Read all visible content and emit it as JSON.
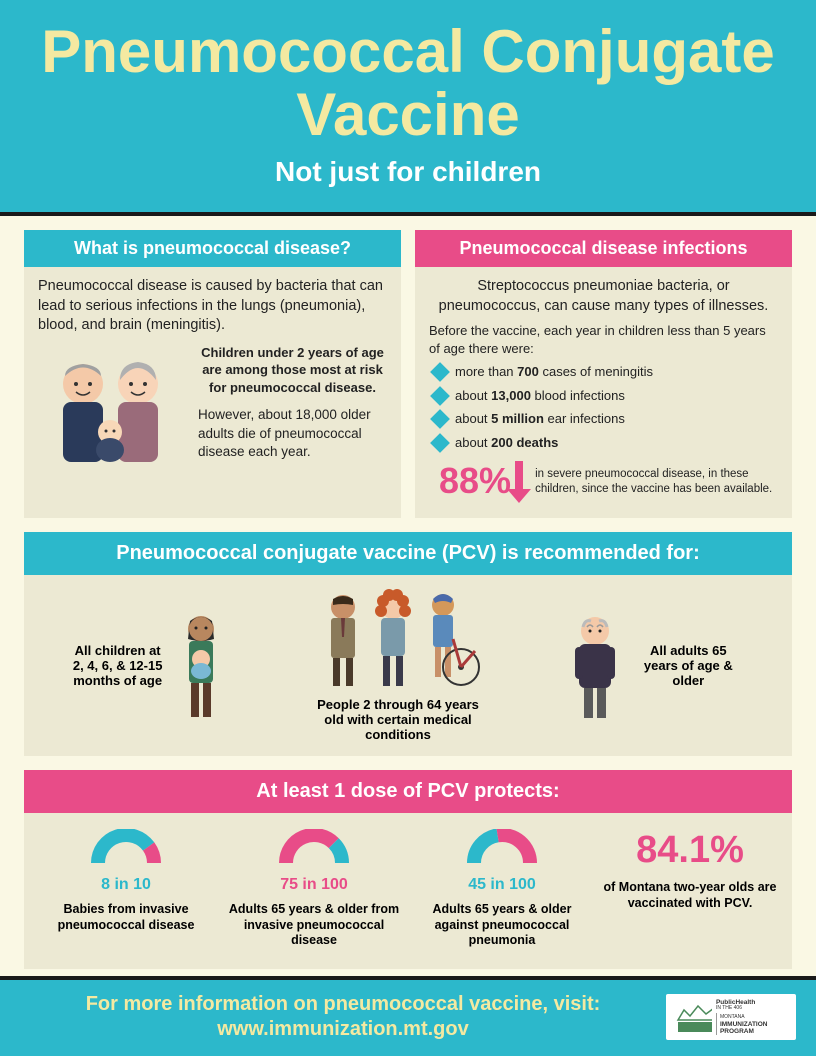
{
  "header": {
    "title": "Pneumococcal Conjugate Vaccine",
    "subtitle": "Not just for children"
  },
  "what": {
    "header": "What is pneumococcal disease?",
    "intro": "Pneumococcal disease is caused by bacteria that can lead to serious infections in the lungs (pneumonia), blood, and brain (meningitis).",
    "risk": "Children under 2 years of age are among those most at risk for pneumococcal disease.",
    "deaths": "However, about 18,000 older adults die of pneumococcal disease each year."
  },
  "infections": {
    "header": "Pneumococcal disease infections",
    "intro": "Streptococcus pneumoniae bacteria, or pneumococcus, can cause many types of illnesses.",
    "note": "Before the vaccine, each year in children less than 5 years of age there were:",
    "items": [
      {
        "pre": "more than ",
        "bold": "700",
        "post": " cases of meningitis"
      },
      {
        "pre": "about ",
        "bold": "13,000",
        "post": " blood infections"
      },
      {
        "pre": "about ",
        "bold": "5 million",
        "post": " ear infections"
      },
      {
        "pre": "about ",
        "bold": "200 deaths",
        "post": ""
      }
    ],
    "pct": "88%",
    "pct_text": "in severe pneumococcal disease, in these children, since the vaccine has been available."
  },
  "recommended": {
    "header": "Pneumococcal conjugate vaccine (PCV) is recommended for:",
    "items": [
      "All children at 2, 4, 6, & 12-15 months of age",
      "People 2 through 64 years old with certain medical conditions",
      "All adults 65 years of age & older"
    ]
  },
  "protects": {
    "header": "At least 1 dose of PCV protects:",
    "gauges": [
      {
        "value": "8 in 10",
        "desc": "Babies from invasive pneumococcal disease",
        "pct": 80,
        "color": "#2cb8cb"
      },
      {
        "value": "75 in 100",
        "desc": "Adults 65 years & older from invasive pneumococcal disease",
        "pct": 75,
        "color": "#e84c88"
      },
      {
        "value": "45 in 100",
        "desc": "Adults 65 years & older against pneumococcal pneumonia",
        "pct": 45,
        "color": "#2cb8cb"
      }
    ],
    "big_stat": "84.1%",
    "big_desc": "of Montana two-year olds are vaccinated with PCV."
  },
  "footer": {
    "line1": "For more information on pneumococcal vaccine, visit:",
    "line2": "www.immunization.mt.gov",
    "logo1": "PublicHealth",
    "logo2": "IMMUNIZATION PROGRAM"
  },
  "colors": {
    "teal": "#2cb8cb",
    "pink": "#e84c88",
    "cream": "#faf8e4",
    "panel": "#ece9d3",
    "title": "#f4e9a1"
  }
}
